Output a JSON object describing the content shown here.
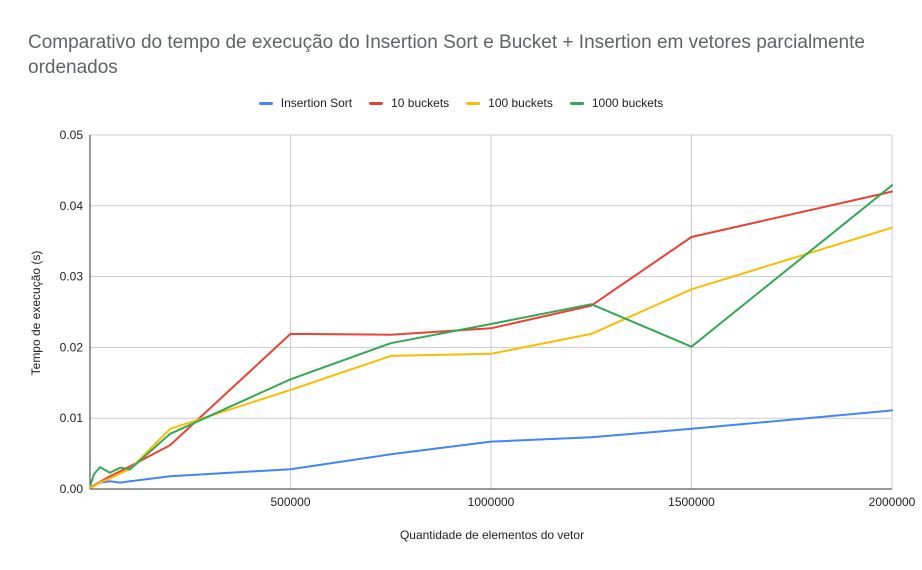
{
  "chart_data": {
    "type": "line",
    "title": "Comparativo do tempo de execução do Insertion Sort e Bucket + Insertion em vetores parcialmente ordenados",
    "xlabel": "Quantidade de elementos do vetor",
    "ylabel": "Tempo de execução (s)",
    "xlim": [
      0,
      2000000
    ],
    "ylim": [
      0,
      0.05
    ],
    "x_ticks": [
      "500000",
      "1000000",
      "1500000",
      "2000000"
    ],
    "y_ticks": [
      "0.00",
      "0.01",
      "0.02",
      "0.03",
      "0.04",
      "0.05"
    ],
    "x_tick_values": [
      500000,
      1000000,
      1500000,
      2000000
    ],
    "y_tick_values": [
      0,
      0.01,
      0.02,
      0.03,
      0.04,
      0.05
    ],
    "grid": true,
    "legend_position": "top",
    "series": [
      {
        "name": "Insertion Sort",
        "color": "#4285F4",
        "x": [
          1000,
          10000,
          25000,
          50000,
          75000,
          100000,
          200000,
          500000,
          750000,
          1000000,
          1250000,
          1500000,
          2000000
        ],
        "y": [
          0.0002,
          0.0005,
          0.0009,
          0.0011,
          0.0009,
          0.0011,
          0.0018,
          0.0028,
          0.0049,
          0.0067,
          0.0073,
          0.0085,
          0.0111
        ]
      },
      {
        "name": "10 buckets",
        "color": "#EA4335",
        "x": [
          1000,
          10000,
          25000,
          50000,
          75000,
          100000,
          200000,
          500000,
          750000,
          1000000,
          1250000,
          1500000,
          2000000
        ],
        "y": [
          0.0002,
          0.0005,
          0.001,
          0.0018,
          0.0025,
          0.0032,
          0.0062,
          0.0219,
          0.0218,
          0.0227,
          0.0259,
          0.0356,
          0.042
        ]
      },
      {
        "name": "100 buckets",
        "color": "#FBBC04",
        "x": [
          1000,
          10000,
          25000,
          50000,
          75000,
          100000,
          200000,
          500000,
          750000,
          1000000,
          1250000,
          1500000,
          2000000
        ],
        "y": [
          0.0002,
          0.0004,
          0.0009,
          0.0015,
          0.0022,
          0.0028,
          0.0085,
          0.014,
          0.0188,
          0.0191,
          0.0219,
          0.0282,
          0.0369
        ]
      },
      {
        "name": "1000 buckets",
        "color": "#34A853",
        "x": [
          1000,
          10000,
          25000,
          50000,
          75000,
          100000,
          200000,
          500000,
          750000,
          1000000,
          1250000,
          1500000,
          2000000
        ],
        "y": [
          0.0005,
          0.0021,
          0.0031,
          0.0023,
          0.003,
          0.0028,
          0.0078,
          0.0155,
          0.0206,
          0.0233,
          0.0261,
          0.0201,
          0.0429
        ]
      }
    ]
  }
}
